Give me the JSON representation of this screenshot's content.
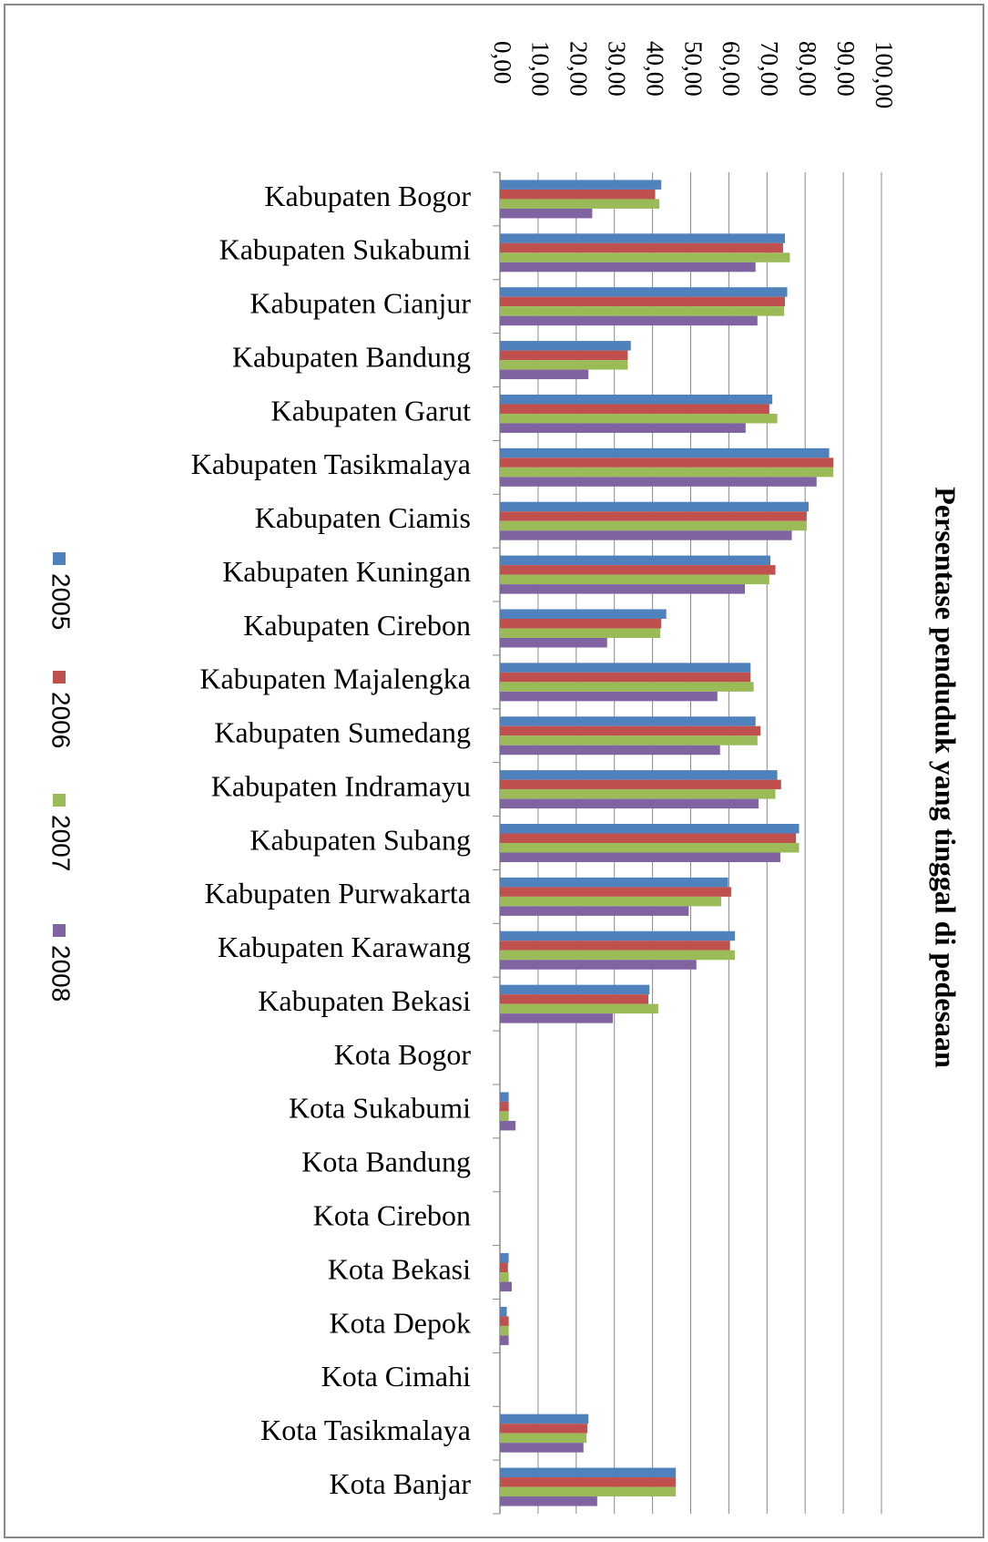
{
  "chart_data": {
    "type": "bar",
    "orientation": "horizontal",
    "title": "Persentase penduduk yang tinggal di pedesaan",
    "categories": [
      "Kabupaten Bogor",
      "Kabupaten Sukabumi",
      "Kabupaten Cianjur",
      "Kabupaten Bandung",
      "Kabupaten Garut",
      "Kabupaten Tasikmalaya",
      "Kabupaten Ciamis",
      "Kabupaten Kuningan",
      "Kabupaten Cirebon",
      "Kabupaten Majalengka",
      "Kabupaten Sumedang",
      "Kabupaten Indramayu",
      "Kabupaten Subang",
      "Kabupaten Purwakarta",
      "Kabupaten Karawang",
      "Kabupaten Bekasi",
      "Kota Bogor",
      "Kota Sukabumi",
      "Kota Bandung",
      "Kota Cirebon",
      "Kota Bekasi",
      "Kota Depok",
      "Kota Cimahi",
      "Kota Tasikmalaya",
      "Kota Banjar"
    ],
    "series": [
      {
        "name": "2005",
        "color": "#4f81bd",
        "values": [
          42.3,
          74.7,
          75.3,
          34.3,
          71.4,
          86.3,
          80.9,
          70.9,
          43.6,
          65.7,
          67.0,
          72.7,
          78.4,
          59.8,
          61.6,
          39.2,
          0,
          2.3,
          0,
          0,
          2.3,
          1.8,
          0,
          23.2,
          46.1
        ]
      },
      {
        "name": "2006",
        "color": "#c0504d",
        "values": [
          40.7,
          74.2,
          74.7,
          33.5,
          70.6,
          87.4,
          80.4,
          72.2,
          42.3,
          65.7,
          68.3,
          73.7,
          77.6,
          60.6,
          60.3,
          38.9,
          0,
          2.3,
          0,
          0,
          2.1,
          2.3,
          0,
          22.9,
          46.1
        ]
      },
      {
        "name": "2007",
        "color": "#9bbb59",
        "values": [
          41.8,
          76.0,
          74.5,
          33.5,
          72.7,
          87.4,
          80.4,
          70.6,
          42.0,
          66.5,
          67.5,
          72.2,
          78.4,
          58.0,
          61.6,
          41.5,
          0,
          2.3,
          0,
          0,
          2.3,
          2.3,
          0,
          22.7,
          46.1
        ]
      },
      {
        "name": "2008",
        "color": "#8064a2",
        "values": [
          24.2,
          67.0,
          67.5,
          23.2,
          64.4,
          83.0,
          76.5,
          64.2,
          28.1,
          57.0,
          57.7,
          67.8,
          73.5,
          49.5,
          51.5,
          29.6,
          0,
          4.1,
          0,
          0,
          3.1,
          2.3,
          0,
          21.9,
          25.5
        ]
      }
    ],
    "xlim": [
      0,
      100
    ],
    "xticks": [
      {
        "value": 0,
        "label": "0,00"
      },
      {
        "value": 10,
        "label": "10,00"
      },
      {
        "value": 20,
        "label": "20,00"
      },
      {
        "value": 30,
        "label": "30,00"
      },
      {
        "value": 40,
        "label": "40,00"
      },
      {
        "value": 50,
        "label": "50,00"
      },
      {
        "value": 60,
        "label": "60,00"
      },
      {
        "value": 70,
        "label": "70,00"
      },
      {
        "value": 80,
        "label": "80,00"
      },
      {
        "value": 90,
        "label": "90,00"
      },
      {
        "value": 100,
        "label": "100,00"
      }
    ],
    "grid": true,
    "legend": "left"
  }
}
